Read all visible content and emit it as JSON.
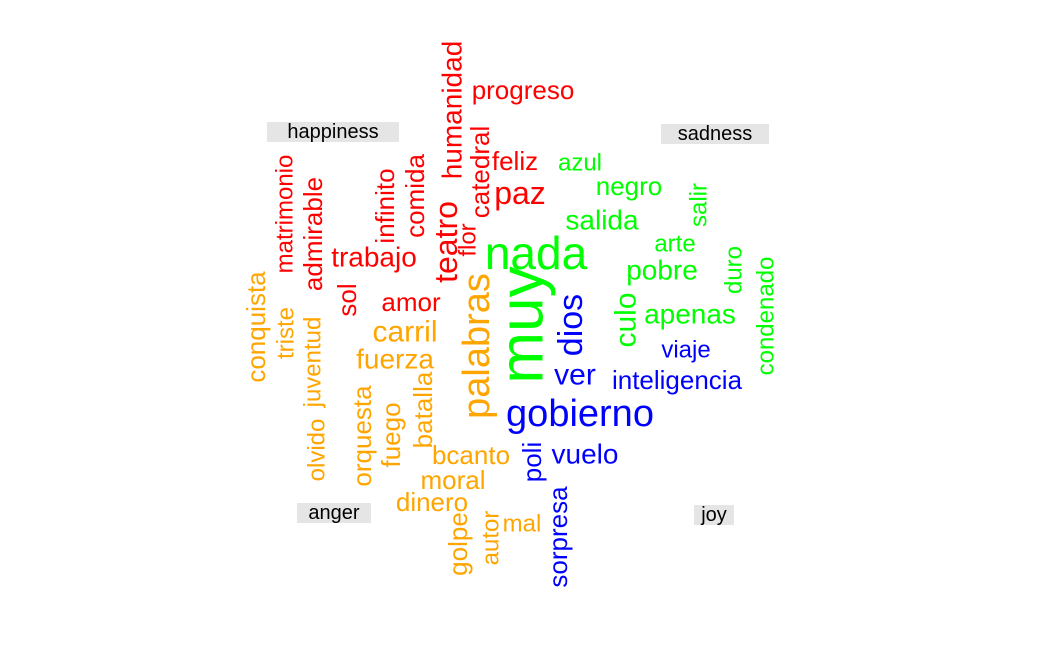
{
  "chart_data": {
    "type": "comparison-wordcloud",
    "groups": [
      {
        "name": "happiness",
        "color": "#ff0000"
      },
      {
        "name": "sadness",
        "color": "#00ff00"
      },
      {
        "name": "anger",
        "color": "#ffa500"
      },
      {
        "name": "joy",
        "color": "#0000ff"
      }
    ],
    "words": [
      {
        "text": "progreso",
        "group": "happiness"
      },
      {
        "text": "humanidad",
        "group": "happiness"
      },
      {
        "text": "catedral",
        "group": "happiness"
      },
      {
        "text": "feliz",
        "group": "happiness"
      },
      {
        "text": "paz",
        "group": "happiness"
      },
      {
        "text": "flor",
        "group": "happiness"
      },
      {
        "text": "teatro",
        "group": "happiness"
      },
      {
        "text": "comida",
        "group": "happiness"
      },
      {
        "text": "infinito",
        "group": "happiness"
      },
      {
        "text": "matrimonio",
        "group": "happiness"
      },
      {
        "text": "admirable",
        "group": "happiness"
      },
      {
        "text": "trabajo",
        "group": "happiness"
      },
      {
        "text": "sol",
        "group": "happiness"
      },
      {
        "text": "amor",
        "group": "happiness"
      },
      {
        "text": "azul",
        "group": "sadness"
      },
      {
        "text": "negro",
        "group": "sadness"
      },
      {
        "text": "salir",
        "group": "sadness"
      },
      {
        "text": "salida",
        "group": "sadness"
      },
      {
        "text": "nada",
        "group": "sadness"
      },
      {
        "text": "muy",
        "group": "sadness"
      },
      {
        "text": "arte",
        "group": "sadness"
      },
      {
        "text": "pobre",
        "group": "sadness"
      },
      {
        "text": "duro",
        "group": "sadness"
      },
      {
        "text": "condenado",
        "group": "sadness"
      },
      {
        "text": "culo",
        "group": "sadness"
      },
      {
        "text": "apenas",
        "group": "sadness"
      },
      {
        "text": "conquista",
        "group": "anger"
      },
      {
        "text": "triste",
        "group": "anger"
      },
      {
        "text": "juventud",
        "group": "anger"
      },
      {
        "text": "olvido",
        "group": "anger"
      },
      {
        "text": "carril",
        "group": "anger"
      },
      {
        "text": "fuerza",
        "group": "anger"
      },
      {
        "text": "palabras",
        "group": "anger"
      },
      {
        "text": "orquesta",
        "group": "anger"
      },
      {
        "text": "fuego",
        "group": "anger"
      },
      {
        "text": "batalla",
        "group": "anger"
      },
      {
        "text": "bcanto",
        "group": "anger"
      },
      {
        "text": "moral",
        "group": "anger"
      },
      {
        "text": "dinero",
        "group": "anger"
      },
      {
        "text": "golpe",
        "group": "anger"
      },
      {
        "text": "autor",
        "group": "anger"
      },
      {
        "text": "mal",
        "group": "anger"
      },
      {
        "text": "dios",
        "group": "joy"
      },
      {
        "text": "viaje",
        "group": "joy"
      },
      {
        "text": "ver",
        "group": "joy"
      },
      {
        "text": "inteligencia",
        "group": "joy"
      },
      {
        "text": "gobierno",
        "group": "joy"
      },
      {
        "text": "poli",
        "group": "joy"
      },
      {
        "text": "vuelo",
        "group": "joy"
      },
      {
        "text": "sorpresa",
        "group": "joy"
      }
    ]
  }
}
